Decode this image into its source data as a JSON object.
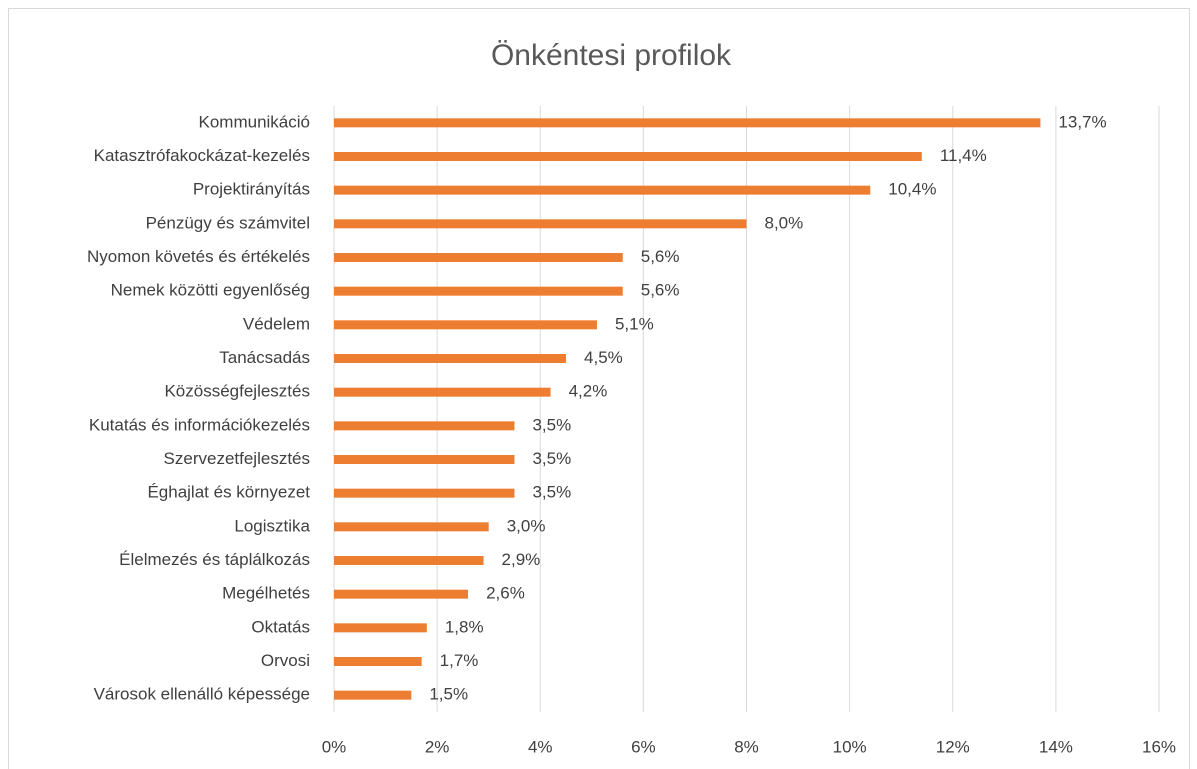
{
  "chart_data": {
    "type": "bar",
    "orientation": "horizontal",
    "title": "Önkéntesi profilok",
    "categories": [
      "Kommunikáció",
      "Katasztrófakockázat-kezelés",
      "Projektirányítás",
      "Pénzügy és számvitel",
      "Nyomon követés és értékelés",
      "Nemek közötti egyenlőség",
      "Védelem",
      "Tanácsadás",
      "Közösségfejlesztés",
      "Kutatás és információkezelés",
      "Szervezetfejlesztés",
      "Éghajlat és környezet",
      "Logisztika",
      "Élelmezés és táplálkozás",
      "Megélhetés",
      "Oktatás",
      "Orvosi",
      "Városok ellenálló képessége"
    ],
    "values": [
      13.7,
      11.4,
      10.4,
      8.0,
      5.6,
      5.6,
      5.1,
      4.5,
      4.2,
      3.5,
      3.5,
      3.5,
      3.0,
      2.9,
      2.6,
      1.8,
      1.7,
      1.5
    ],
    "value_labels": [
      "13,7%",
      "11,4%",
      "10,4%",
      "8,0%",
      "5,6%",
      "5,6%",
      "5,1%",
      "4,5%",
      "4,2%",
      "3,5%",
      "3,5%",
      "3,5%",
      "3,0%",
      "2,9%",
      "2,6%",
      "1,8%",
      "1,7%",
      "1,5%"
    ],
    "color": "#ed7d31",
    "xlim": [
      0,
      16
    ],
    "xticks": [
      {
        "value": 0,
        "label": "0%"
      },
      {
        "value": 2,
        "label": "2%"
      },
      {
        "value": 4,
        "label": "4%"
      },
      {
        "value": 6,
        "label": "6%"
      },
      {
        "value": 8,
        "label": "8%"
      },
      {
        "value": 10,
        "label": "10%"
      },
      {
        "value": 12,
        "label": "12%"
      },
      {
        "value": 14,
        "label": "14%"
      },
      {
        "value": 16,
        "label": "16%"
      }
    ],
    "grid": true
  }
}
